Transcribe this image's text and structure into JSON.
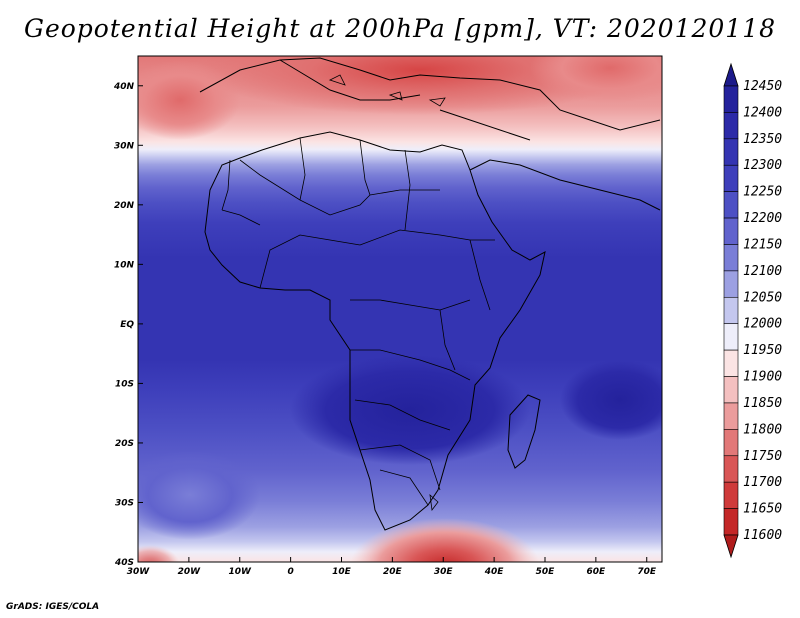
{
  "title": "Geopotential Height at 200hPa [gpm], VT: 2020120118",
  "credit": "GrADS: IGES/COLA",
  "map": {
    "lon_ticks": [
      "30W",
      "20W",
      "10W",
      "0",
      "10E",
      "20E",
      "30E",
      "40E",
      "50E",
      "60E",
      "70E"
    ],
    "lat_ticks": [
      "40N",
      "30N",
      "20N",
      "10N",
      "EQ",
      "10S",
      "20S",
      "30S",
      "40S"
    ],
    "lon_range": [
      -30,
      73
    ],
    "lat_range": [
      -40,
      45
    ]
  },
  "colorbar": {
    "levels": [
      "12450",
      "12400",
      "12350",
      "12300",
      "12250",
      "12200",
      "12150",
      "12100",
      "12050",
      "12000",
      "11950",
      "11900",
      "11850",
      "11800",
      "11750",
      "11700",
      "11650",
      "11600"
    ],
    "colors": [
      "#1c1a8a",
      "#24229c",
      "#2c2aa8",
      "#3434b2",
      "#3e3fbb",
      "#4d50c4",
      "#6163cd",
      "#7a7ed7",
      "#9ca0e2",
      "#c4c7ef",
      "#eeeefa",
      "#fbe4e4",
      "#f4c0c0",
      "#eb9c9c",
      "#e27878",
      "#d95656",
      "#cf3a3a",
      "#c42727",
      "#b01c1c"
    ]
  }
}
